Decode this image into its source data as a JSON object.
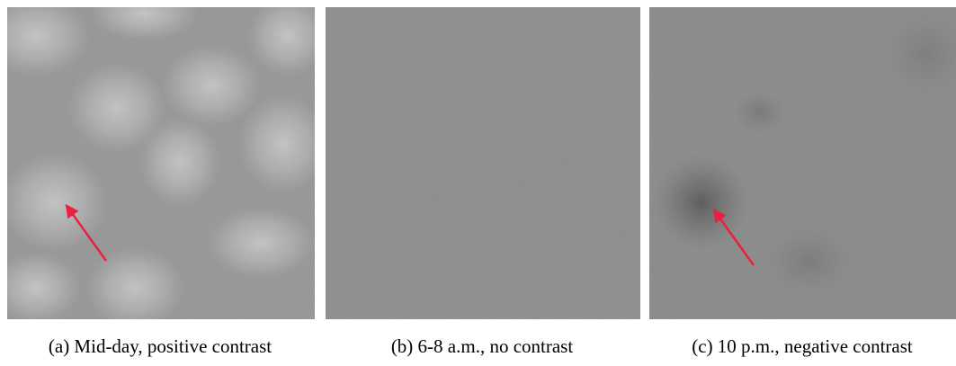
{
  "panels": [
    {
      "caption": "(a) Mid-day, positive contrast"
    },
    {
      "caption": "(b) 6-8 a.m., no contrast"
    },
    {
      "caption": "(c) 10 p.m., negative contrast"
    }
  ]
}
